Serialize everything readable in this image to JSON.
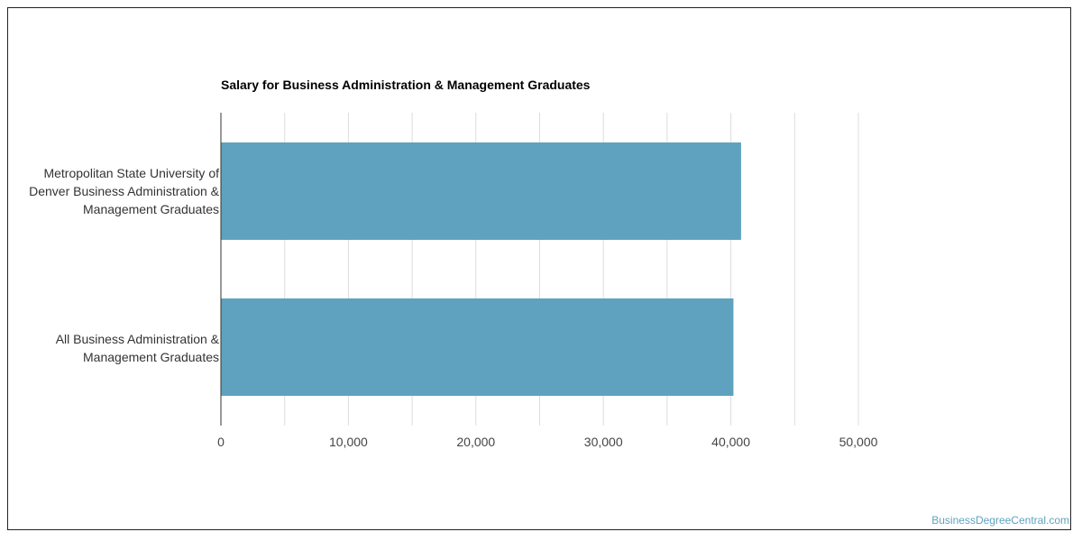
{
  "chart_data": {
    "type": "bar",
    "orientation": "horizontal",
    "title": "Salary for Business Administration & Management Graduates",
    "categories": [
      "Metropolitan State University of Denver Business Administration & Management Graduates",
      "All Business Administration & Management Graduates"
    ],
    "values": [
      40800,
      40200
    ],
    "xlim": [
      0,
      50000
    ],
    "xticks": [
      "0",
      "10,000",
      "20,000",
      "30,000",
      "40,000",
      "50,000"
    ],
    "grid": true,
    "bar_color": "#5ea2bf"
  },
  "credit": "BusinessDegreeCentral.com"
}
